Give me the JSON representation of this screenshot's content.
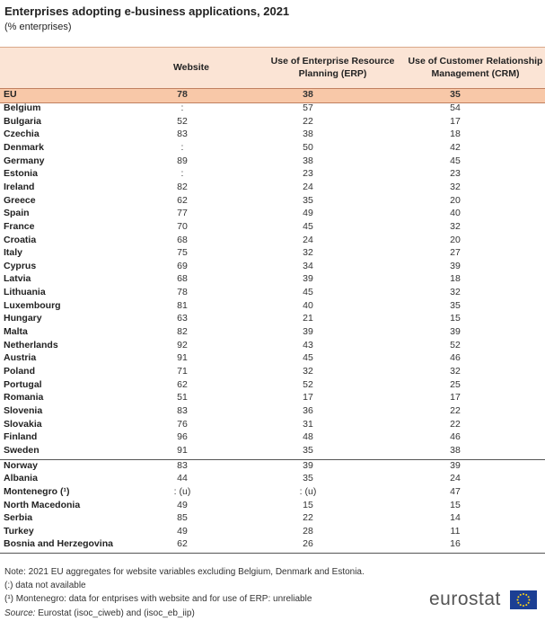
{
  "title": "Enterprises adopting e-business applications, 2021",
  "subtitle": "(% enterprises)",
  "table": {
    "columns": [
      "Website",
      "Use of Enterprise Resource Planning (ERP)",
      "Use of Customer Relationship Management (CRM)"
    ],
    "eu_row": {
      "label": "EU",
      "values": [
        78,
        38,
        35
      ]
    },
    "member_rows": [
      {
        "label": "Belgium",
        "values": [
          ":",
          57,
          54
        ]
      },
      {
        "label": "Bulgaria",
        "values": [
          52,
          22,
          17
        ]
      },
      {
        "label": "Czechia",
        "values": [
          83,
          38,
          18
        ]
      },
      {
        "label": "Denmark",
        "values": [
          ":",
          50,
          42
        ]
      },
      {
        "label": "Germany",
        "values": [
          89,
          38,
          45
        ]
      },
      {
        "label": "Estonia",
        "values": [
          ":",
          23,
          23
        ]
      },
      {
        "label": "Ireland",
        "values": [
          82,
          24,
          32
        ]
      },
      {
        "label": "Greece",
        "values": [
          62,
          35,
          20
        ]
      },
      {
        "label": "Spain",
        "values": [
          77,
          49,
          40
        ]
      },
      {
        "label": "France",
        "values": [
          70,
          45,
          32
        ]
      },
      {
        "label": "Croatia",
        "values": [
          68,
          24,
          20
        ]
      },
      {
        "label": "Italy",
        "values": [
          75,
          32,
          27
        ]
      },
      {
        "label": "Cyprus",
        "values": [
          69,
          34,
          39
        ]
      },
      {
        "label": "Latvia",
        "values": [
          68,
          39,
          18
        ]
      },
      {
        "label": "Lithuania",
        "values": [
          78,
          45,
          32
        ]
      },
      {
        "label": "Luxembourg",
        "values": [
          81,
          40,
          35
        ]
      },
      {
        "label": "Hungary",
        "values": [
          63,
          21,
          15
        ]
      },
      {
        "label": "Malta",
        "values": [
          82,
          39,
          39
        ]
      },
      {
        "label": "Netherlands",
        "values": [
          92,
          43,
          52
        ]
      },
      {
        "label": "Austria",
        "values": [
          91,
          45,
          46
        ]
      },
      {
        "label": "Poland",
        "values": [
          71,
          32,
          32
        ]
      },
      {
        "label": "Portugal",
        "values": [
          62,
          52,
          25
        ]
      },
      {
        "label": "Romania",
        "values": [
          51,
          17,
          17
        ]
      },
      {
        "label": "Slovenia",
        "values": [
          83,
          36,
          22
        ]
      },
      {
        "label": "Slovakia",
        "values": [
          76,
          31,
          22
        ]
      },
      {
        "label": "Finland",
        "values": [
          96,
          48,
          46
        ]
      },
      {
        "label": "Sweden",
        "values": [
          91,
          35,
          38
        ]
      }
    ],
    "other_rows": [
      {
        "label": "Norway",
        "values": [
          83,
          39,
          39
        ]
      },
      {
        "label": "Albania",
        "values": [
          44,
          35,
          24
        ]
      },
      {
        "label": "Montenegro (¹)",
        "values": [
          ": (u)",
          ": (u)",
          47
        ]
      },
      {
        "label": "North Macedonia",
        "values": [
          49,
          15,
          15
        ]
      },
      {
        "label": "Serbia",
        "values": [
          85,
          22,
          14
        ]
      },
      {
        "label": "Turkey",
        "values": [
          49,
          28,
          11
        ]
      },
      {
        "label": "Bosnia and Herzegovina",
        "values": [
          62,
          26,
          16
        ]
      }
    ]
  },
  "notes": [
    "Note: 2021 EU aggregates for website variables excluding Belgium, Denmark and Estonia.",
    "(:) data not available",
    "(¹) Montenegro: data for entprises with website and for use of ERP: unreliable"
  ],
  "source_label": "Source:",
  "source": "Eurostat (isoc_ciweb) and (isoc_eb_iip)",
  "logo": "eurostat"
}
